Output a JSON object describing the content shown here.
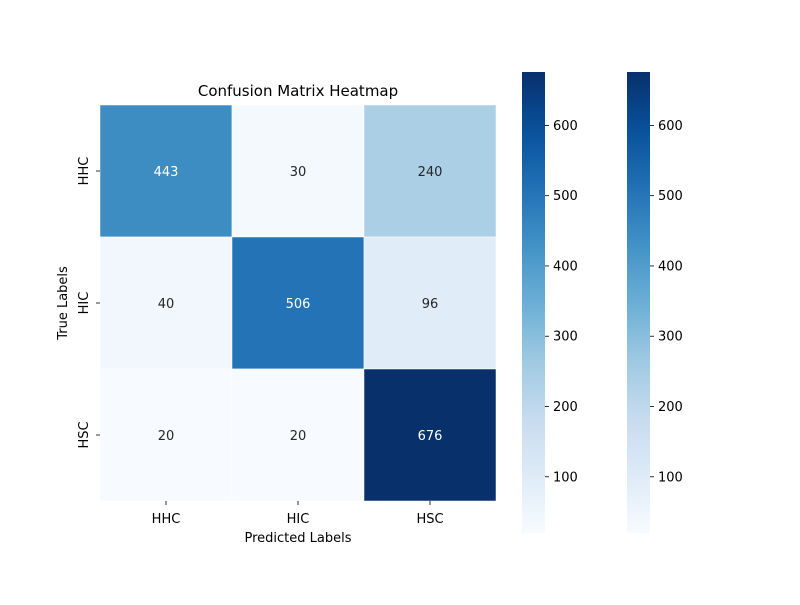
{
  "chart_data": {
    "type": "heatmap",
    "title": "Confusion Matrix Heatmap",
    "xlabel": "Predicted Labels",
    "ylabel": "True Labels",
    "x_categories": [
      "HHC",
      "HIC",
      "HSC"
    ],
    "y_categories": [
      "HHC",
      "HIC",
      "HSC"
    ],
    "matrix": [
      [
        443,
        30,
        240
      ],
      [
        40,
        506,
        96
      ],
      [
        20,
        20,
        676
      ]
    ],
    "colormap": "Blues",
    "color_range": [
      20,
      676
    ],
    "colorbar_ticks": [
      100,
      200,
      300,
      400,
      500,
      600
    ],
    "colorbar_count": 2
  }
}
